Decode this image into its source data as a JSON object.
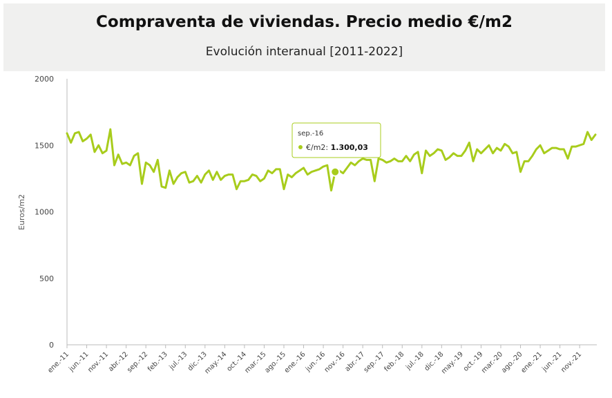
{
  "header": {
    "title": "Compraventa de viviendas. Precio medio €/m2",
    "subtitle": "Evolución interanual [2011-2022]"
  },
  "colors": {
    "series": "#a8cc1c",
    "header_bg": "#f0f0ef",
    "axis": "#bbbbbb"
  },
  "tooltip": {
    "date": "sep.-16",
    "series_name": "€/m2",
    "separator": ": ",
    "value_text": "1.300,03",
    "index": 68,
    "value": 1300.03
  },
  "chart_data": {
    "type": "line",
    "title": "Compraventa de viviendas. Precio medio €/m2",
    "subtitle": "Evolución interanual [2011-2022]",
    "xlabel": "",
    "ylabel": "Euros/m2",
    "ylim": [
      0,
      2000
    ],
    "yticks": [
      0,
      500,
      1000,
      1500,
      2000
    ],
    "grid": false,
    "legend": "none",
    "x_tick_labels": [
      "ene.-11",
      "jun.-11",
      "nov.-11",
      "abr.-12",
      "sep.-12",
      "feb.-13",
      "jul.-13",
      "dic.-13",
      "may.-14",
      "oct.-14",
      "mar.-15",
      "ago.-15",
      "ene.-16",
      "jun.-16",
      "nov.-16",
      "abr.-17",
      "sep.-17",
      "feb.-18",
      "jul.-18",
      "dic.-18",
      "may.-19",
      "oct.-19",
      "mar.-20",
      "ago.-20",
      "ene.-21",
      "jun.-21",
      "nov.-21"
    ],
    "x_tick_step_months": 5,
    "x_start": "ene.-11",
    "series": [
      {
        "name": "€/m2",
        "values": [
          1590,
          1520,
          1590,
          1600,
          1530,
          1550,
          1580,
          1450,
          1500,
          1440,
          1460,
          1620,
          1350,
          1430,
          1360,
          1370,
          1350,
          1420,
          1440,
          1210,
          1370,
          1350,
          1300,
          1390,
          1190,
          1180,
          1310,
          1210,
          1260,
          1290,
          1300,
          1220,
          1230,
          1270,
          1220,
          1280,
          1310,
          1240,
          1300,
          1240,
          1270,
          1280,
          1280,
          1170,
          1230,
          1230,
          1240,
          1280,
          1270,
          1230,
          1250,
          1310,
          1290,
          1320,
          1320,
          1170,
          1280,
          1260,
          1290,
          1310,
          1330,
          1280,
          1300,
          1310,
          1320,
          1340,
          1350,
          1160,
          1300,
          1310,
          1290,
          1330,
          1370,
          1350,
          1380,
          1400,
          1390,
          1390,
          1230,
          1400,
          1390,
          1370,
          1380,
          1400,
          1380,
          1380,
          1420,
          1380,
          1430,
          1450,
          1290,
          1460,
          1420,
          1440,
          1470,
          1460,
          1390,
          1410,
          1440,
          1420,
          1420,
          1460,
          1520,
          1380,
          1470,
          1440,
          1470,
          1500,
          1440,
          1480,
          1460,
          1510,
          1490,
          1440,
          1450,
          1300,
          1380,
          1380,
          1420,
          1470,
          1500,
          1440,
          1460,
          1480,
          1480,
          1470,
          1470,
          1400,
          1490,
          1490,
          1500,
          1510,
          1600,
          1540,
          1580
        ]
      }
    ]
  }
}
